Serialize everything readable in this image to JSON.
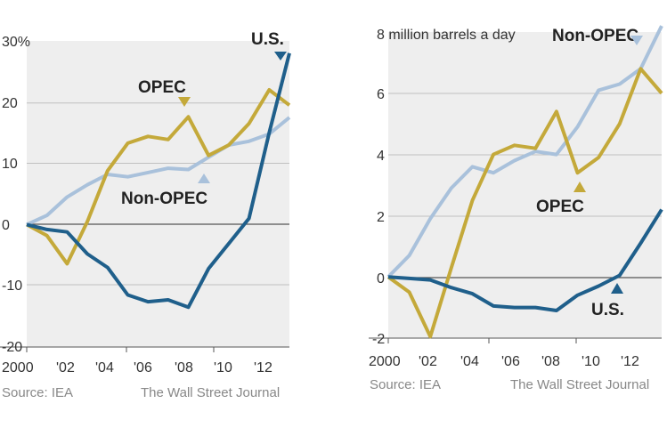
{
  "chart_data": [
    {
      "type": "line",
      "title": "",
      "ylabel_unit": "%",
      "xlabel": "",
      "ylim": [
        -20,
        30
      ],
      "y_ticks": [
        "30%",
        "20",
        "10",
        "0",
        "-10",
        "-20"
      ],
      "y_tick_values": [
        30,
        20,
        10,
        0,
        -10,
        -20
      ],
      "x_ticks": [
        "2000",
        "'02",
        "'04",
        "'06",
        "'08",
        "'10",
        "'12"
      ],
      "x_tick_values": [
        2000,
        2002,
        2004,
        2006,
        2008,
        2010,
        2012
      ],
      "x": [
        2000,
        2001,
        2002,
        2003,
        2004,
        2005,
        2006,
        2007,
        2008,
        2009,
        2010,
        2011,
        2012,
        2013
      ],
      "series": [
        {
          "name": "Non-OPEC",
          "color": "#a9c1db",
          "values": [
            0,
            1.5,
            4.5,
            6.5,
            8.2,
            7.8,
            8.5,
            9.2,
            9,
            11,
            13,
            13.6,
            14.8,
            17.5
          ]
        },
        {
          "name": "OPEC",
          "color": "#c4a93a",
          "values": [
            0,
            -1.8,
            -6.4,
            0.5,
            8.8,
            13.3,
            14.4,
            13.9,
            17.6,
            11.3,
            13,
            16.5,
            22,
            19.5
          ]
        },
        {
          "name": "U.S.",
          "color": "#1f5f8b",
          "values": [
            0,
            -0.8,
            -1.2,
            -4.8,
            -7,
            -11.5,
            -12.6,
            -12.3,
            -13.5,
            -7.2,
            -3.1,
            1,
            15,
            28
          ]
        }
      ],
      "labels": {
        "us": "U.S.",
        "opec": "OPEC",
        "nonopec": "Non-OPEC"
      },
      "source": "Source: IEA",
      "credit": "The Wall Street Journal"
    },
    {
      "type": "line",
      "title": "",
      "unit_label": "8 million barrels a day",
      "xlabel": "",
      "ylim": [
        -2,
        8
      ],
      "y_ticks": [
        "6",
        "4",
        "2",
        "0",
        "-2"
      ],
      "y_tick_values": [
        6,
        4,
        2,
        0,
        -2
      ],
      "x_ticks": [
        "2000",
        "'02",
        "'04",
        "'06",
        "'08",
        "'10",
        "'12"
      ],
      "x_tick_values": [
        2000,
        2002,
        2004,
        2006,
        2008,
        2010,
        2012
      ],
      "x": [
        2000,
        2001,
        2002,
        2003,
        2004,
        2005,
        2006,
        2007,
        2008,
        2009,
        2010,
        2011,
        2012,
        2013
      ],
      "series": [
        {
          "name": "Non-OPEC",
          "color": "#a9c1db",
          "values": [
            0,
            0.7,
            1.9,
            2.9,
            3.6,
            3.4,
            3.8,
            4.1,
            4,
            4.9,
            6.1,
            6.3,
            6.8,
            8.2
          ]
        },
        {
          "name": "OPEC",
          "color": "#c4a93a",
          "values": [
            0,
            -0.5,
            -1.95,
            0.3,
            2.5,
            4,
            4.3,
            4.2,
            5.4,
            3.4,
            3.9,
            5,
            6.8,
            6
          ]
        },
        {
          "name": "U.S.",
          "color": "#1f5f8b",
          "values": [
            0,
            -0.05,
            -0.1,
            -0.35,
            -0.55,
            -0.95,
            -1,
            -1,
            -1.1,
            -0.6,
            -0.3,
            0.05,
            1.1,
            2.2
          ]
        }
      ],
      "labels": {
        "us": "U.S.",
        "opec": "OPEC",
        "nonopec": "Non-OPEC"
      },
      "source": "Source: IEA",
      "credit": "The Wall Street Journal"
    }
  ]
}
